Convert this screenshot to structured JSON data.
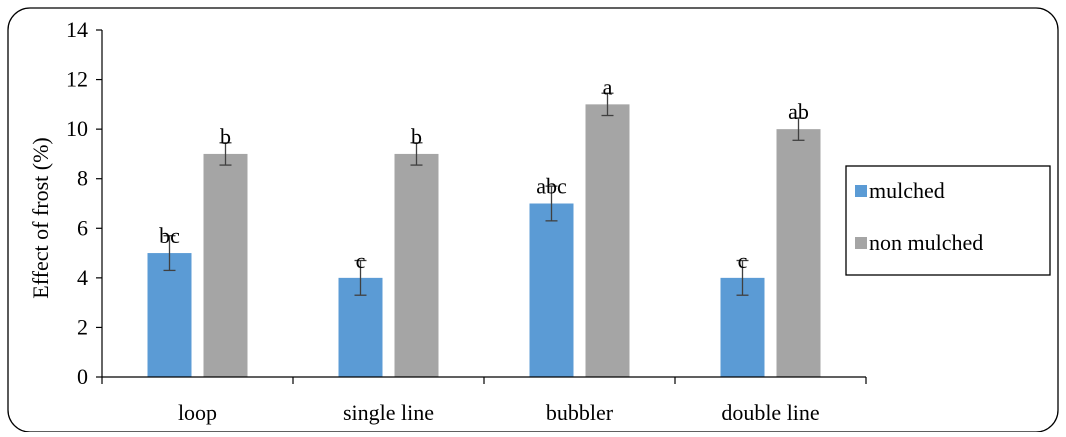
{
  "chart_data": {
    "type": "bar",
    "title": "",
    "xlabel": "",
    "ylabel": "Effect of frost (%)",
    "ylim": [
      0,
      14
    ],
    "yticks": [
      0,
      2,
      4,
      6,
      8,
      10,
      12,
      14
    ],
    "grid": false,
    "legend_position": "right",
    "categories": [
      "loop",
      "single line",
      "bubbler",
      "double line"
    ],
    "series": [
      {
        "name": "mulched",
        "color": "#5b9bd5",
        "values": [
          5,
          4,
          7,
          4
        ],
        "errors": [
          0.7,
          0.7,
          0.7,
          0.7
        ],
        "labels": [
          "bc",
          "c",
          "abc",
          "c"
        ]
      },
      {
        "name": "non mulched",
        "color": "#a5a5a5",
        "values": [
          9,
          9,
          11,
          10
        ],
        "errors": [
          0.45,
          0.45,
          0.45,
          0.45
        ],
        "labels": [
          "b",
          "b",
          "a",
          "ab"
        ]
      }
    ]
  }
}
